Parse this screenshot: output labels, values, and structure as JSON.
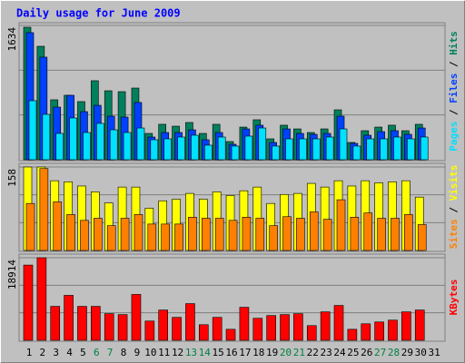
{
  "chart_data": [
    {
      "type": "bar",
      "title": "Daily usage for June 2009",
      "categories": [
        "1",
        "2",
        "3",
        "4",
        "5",
        "6",
        "7",
        "8",
        "9",
        "10",
        "11",
        "12",
        "13",
        "14",
        "15",
        "16",
        "17",
        "18",
        "19",
        "20",
        "21",
        "22",
        "23",
        "24",
        "25",
        "26",
        "27",
        "28",
        "29",
        "30",
        "31"
      ],
      "ylim": [
        0,
        1634
      ],
      "yticks": [
        1634
      ],
      "legend_separator": " / ",
      "series": [
        {
          "name": "Hits",
          "color": "#00805c",
          "values": [
            1612,
            1380,
            729,
            784,
            707,
            961,
            839,
            828,
            872,
            320,
            431,
            408,
            453,
            320,
            431,
            221,
            397,
            486,
            254,
            420,
            375,
            331,
            375,
            607,
            210,
            353,
            397,
            420,
            353,
            431,
            null
          ]
        },
        {
          "name": "Files",
          "color": "#0040ff",
          "values": [
            1546,
            1248,
            640,
            784,
            585,
            662,
            530,
            519,
            696,
            276,
            331,
            331,
            364,
            243,
            331,
            188,
            375,
            420,
            210,
            375,
            320,
            309,
            320,
            530,
            199,
            298,
            342,
            353,
            309,
            386,
            null
          ]
        },
        {
          "name": "Pages",
          "color": "#00e0ff",
          "values": [
            718,
            552,
            320,
            508,
            331,
            442,
            364,
            331,
            386,
            243,
            254,
            276,
            298,
            177,
            276,
            166,
            287,
            386,
            166,
            254,
            254,
            254,
            276,
            375,
            166,
            254,
            254,
            276,
            254,
            276,
            null
          ]
        }
      ]
    },
    {
      "type": "bar",
      "categories": [
        "1",
        "2",
        "3",
        "4",
        "5",
        "6",
        "7",
        "8",
        "9",
        "10",
        "11",
        "12",
        "13",
        "14",
        "15",
        "16",
        "17",
        "18",
        "19",
        "20",
        "21",
        "22",
        "23",
        "24",
        "25",
        "26",
        "27",
        "28",
        "29",
        "30",
        "31"
      ],
      "ylim": [
        0,
        158
      ],
      "yticks": [
        158
      ],
      "legend_separator": " / ",
      "series": [
        {
          "name": "Visits",
          "color": "#ffff00",
          "values": [
            158,
            158,
            132,
            130,
            122,
            111,
            90,
            120,
            120,
            80,
            94,
            97,
            108,
            97,
            111,
            104,
            113,
            120,
            89,
            106,
            108,
            127,
            120,
            132,
            122,
            132,
            128,
            130,
            132,
            101,
            null
          ]
        },
        {
          "name": "Sites",
          "color": "#ff8000",
          "values": [
            89,
            155,
            92,
            68,
            57,
            61,
            47,
            61,
            68,
            50,
            50,
            50,
            63,
            61,
            61,
            57,
            63,
            61,
            47,
            64,
            61,
            73,
            59,
            96,
            63,
            71,
            61,
            61,
            68,
            49,
            null
          ]
        }
      ]
    },
    {
      "type": "bar",
      "categories": [
        "1",
        "2",
        "3",
        "4",
        "5",
        "6",
        "7",
        "8",
        "9",
        "10",
        "11",
        "12",
        "13",
        "14",
        "15",
        "16",
        "17",
        "18",
        "19",
        "20",
        "21",
        "22",
        "23",
        "24",
        "25",
        "26",
        "27",
        "28",
        "29",
        "30",
        "31"
      ],
      "ylim": [
        0,
        18914
      ],
      "yticks": [
        18914
      ],
      "highlighted_ticks": [
        5,
        6,
        12,
        13,
        19,
        20,
        26,
        27
      ],
      "highlight_color": "#008040",
      "series": [
        {
          "name": "KBytes",
          "color": "#ff0000",
          "values": [
            17233,
            18914,
            7776,
            10298,
            7776,
            7776,
            6095,
            5884,
            10509,
            4413,
            6935,
            5253,
            8406,
            3572,
            5253,
            2521,
            7566,
            5043,
            5673,
            5884,
            6095,
            3362,
            6515,
            7986,
            2521,
            3782,
            4203,
            4623,
            6515,
            6935,
            null
          ]
        }
      ]
    }
  ]
}
